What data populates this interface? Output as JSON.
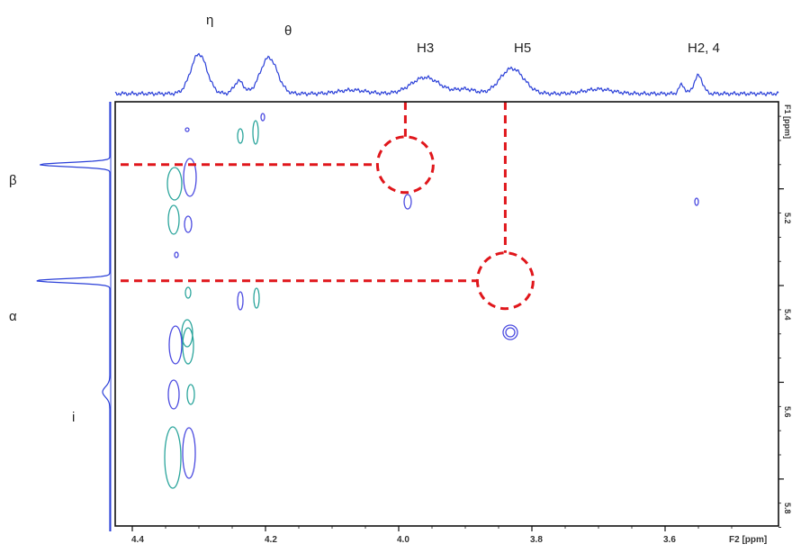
{
  "chart_data": {
    "type": "2D NMR contour spectrum",
    "xlabel": "F2 [ppm]",
    "ylabel": "F1 [ppm]",
    "xlim": [
      4.42,
      3.47
    ],
    "x_ticks": [
      "4.4",
      "4.2",
      "4.0",
      "3.8",
      "3.6"
    ],
    "y_ticks": [
      "5.2",
      "5.4",
      "5.6",
      "5.8"
    ],
    "top_projection_labels": [
      {
        "text": "η",
        "ppm": 4.3
      },
      {
        "text": "θ",
        "ppm": 4.19
      },
      {
        "text": "H3",
        "ppm": 3.96
      },
      {
        "text": "H5",
        "ppm": 3.83
      },
      {
        "text": "H2, 4",
        "ppm": 3.55
      }
    ],
    "left_projection_labels": [
      {
        "text": "β",
        "ppm": 5.15
      },
      {
        "text": "α",
        "ppm": 5.39
      },
      {
        "text": "i",
        "ppm": 5.62
      }
    ],
    "highlighted_cross_peaks": [
      {
        "f2": 3.99,
        "f1": 5.15,
        "top_label": "H3",
        "side_label": "β"
      },
      {
        "f2": 3.84,
        "f1": 5.39,
        "top_label": "H5",
        "side_label": "α"
      }
    ],
    "colors": {
      "projection": "#2a3fd8",
      "contour_positive": "#4b4be0",
      "contour_alt": "#2ba59c",
      "highlight": "#e0161b",
      "frame": "#111111"
    }
  }
}
